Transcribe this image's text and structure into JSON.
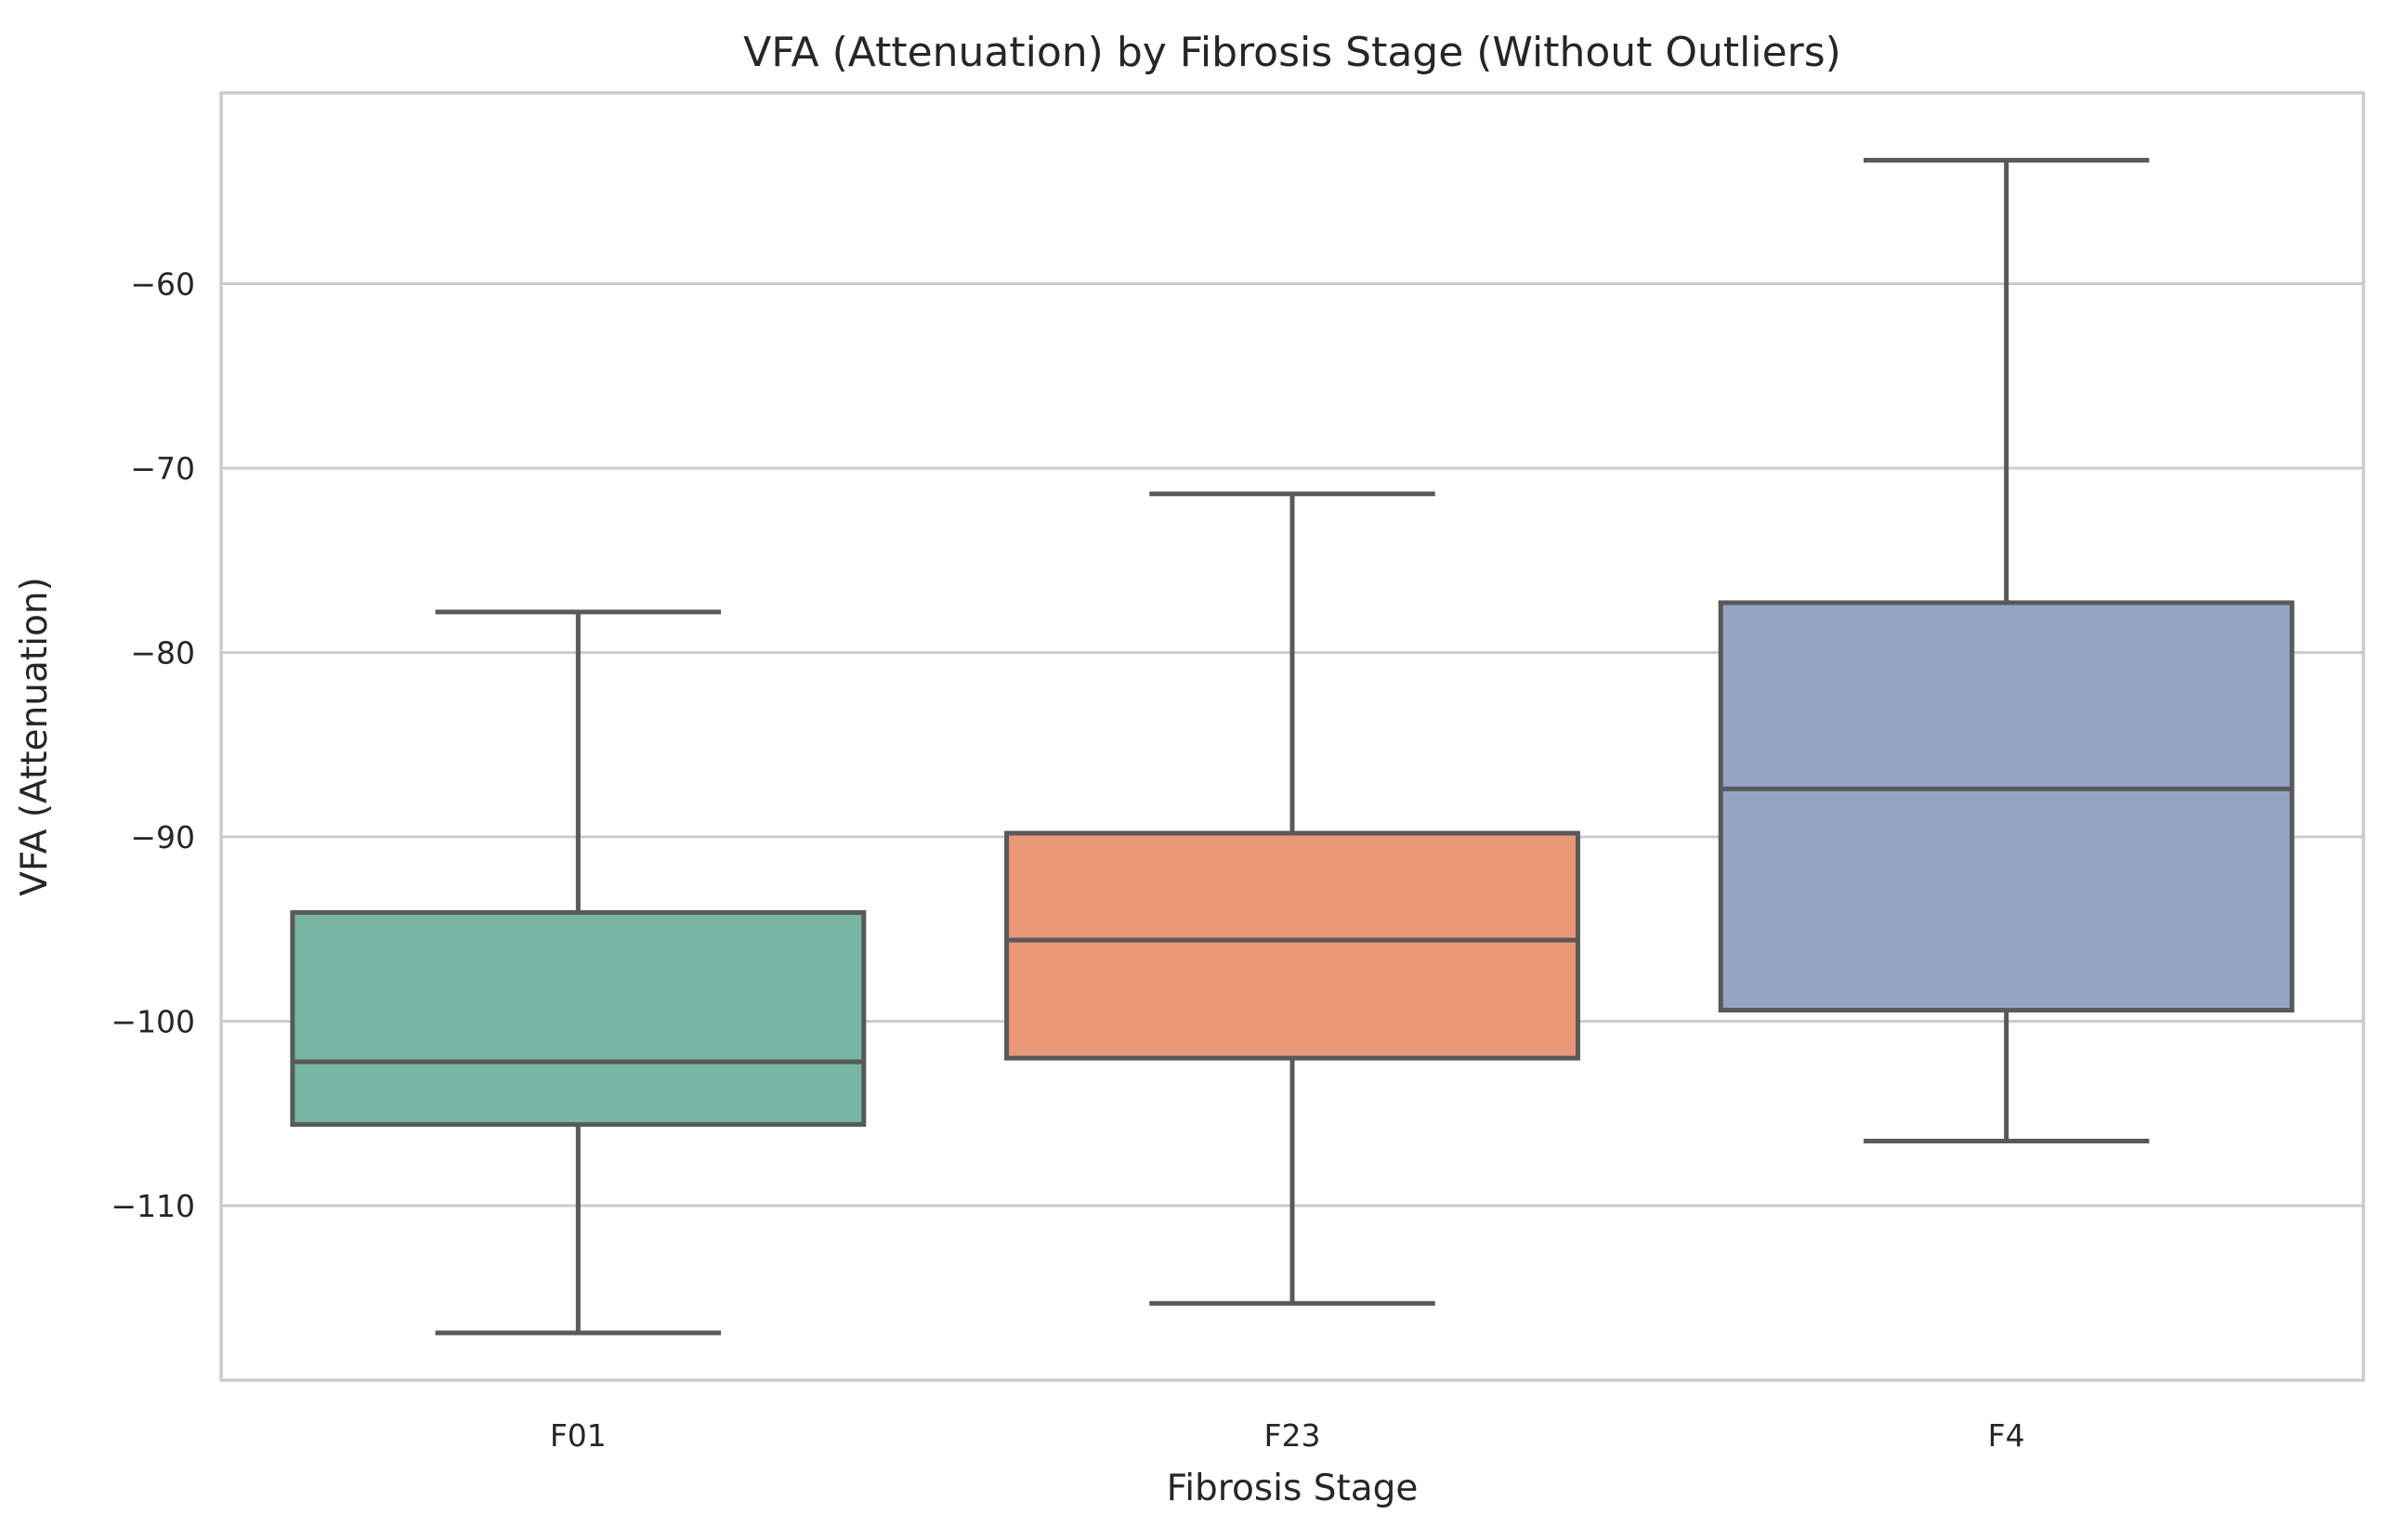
{
  "chart_data": {
    "type": "box",
    "title": "VFA (Attenuation) by Fibrosis Stage (Without Outliers)",
    "xlabel": "Fibrosis Stage",
    "ylabel": "VFA (Attenuation)",
    "ylim": [
      -120,
      -50
    ],
    "yticks": [
      -110,
      -100,
      -90,
      -80,
      -70,
      -60
    ],
    "ytick_labels": [
      "−110",
      "−100",
      "−90",
      "−80",
      "−70",
      "−60"
    ],
    "grid": true,
    "categories": [
      "F01",
      "F23",
      "F4"
    ],
    "boxes": [
      {
        "category": "F01",
        "whisker_low": -116.9,
        "q1": -105.6,
        "median": -102.2,
        "q3": -94.1,
        "whisker_high": -77.8
      },
      {
        "category": "F23",
        "whisker_low": -115.3,
        "q1": -102.0,
        "median": -95.6,
        "q3": -89.8,
        "whisker_high": -71.4
      },
      {
        "category": "F4",
        "whisker_low": -106.5,
        "q1": -99.4,
        "median": -87.4,
        "q3": -77.3,
        "whisker_high": -53.3
      }
    ],
    "colors": [
      "#76b6a3",
      "#ea9775",
      "#95a4c3"
    ],
    "line_color": "#595959"
  }
}
